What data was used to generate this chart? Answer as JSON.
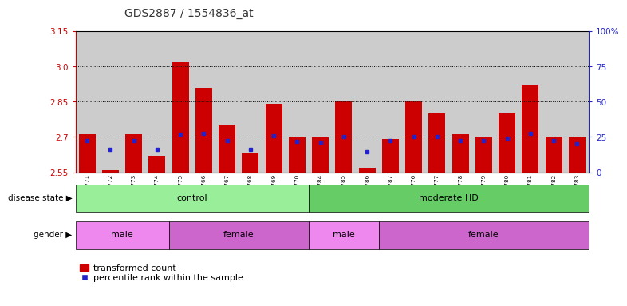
{
  "title": "GDS2887 / 1554836_at",
  "samples": [
    "GSM217771",
    "GSM217772",
    "GSM217773",
    "GSM217774",
    "GSM217775",
    "GSM217766",
    "GSM217767",
    "GSM217768",
    "GSM217769",
    "GSM217770",
    "GSM217784",
    "GSM217785",
    "GSM217786",
    "GSM217787",
    "GSM217776",
    "GSM217777",
    "GSM217778",
    "GSM217779",
    "GSM217780",
    "GSM217781",
    "GSM217782",
    "GSM217783"
  ],
  "red_values": [
    2.71,
    2.56,
    2.71,
    2.62,
    3.02,
    2.91,
    2.75,
    2.63,
    2.84,
    2.7,
    2.7,
    2.85,
    2.57,
    2.69,
    2.85,
    2.8,
    2.71,
    2.7,
    2.8,
    2.92,
    2.7,
    2.7
  ],
  "blue_values": [
    2.685,
    2.648,
    2.686,
    2.648,
    2.712,
    2.715,
    2.686,
    2.648,
    2.706,
    2.682,
    2.677,
    2.7,
    2.637,
    2.686,
    2.7,
    2.7,
    2.686,
    2.686,
    2.696,
    2.715,
    2.686,
    2.672
  ],
  "ymin": 2.55,
  "ymax": 3.15,
  "yticks_left": [
    2.55,
    2.7,
    2.85,
    3.0,
    3.15
  ],
  "yticks_right": [
    0,
    25,
    50,
    75,
    100
  ],
  "grid_vals": [
    2.7,
    2.85,
    3.0
  ],
  "disease_state_labels": [
    "control",
    "moderate HD"
  ],
  "disease_state_ranges": [
    [
      0,
      10
    ],
    [
      10,
      22
    ]
  ],
  "gender_labels": [
    "male",
    "female",
    "male",
    "female"
  ],
  "gender_ranges": [
    [
      0,
      4
    ],
    [
      4,
      10
    ],
    [
      10,
      13
    ],
    [
      13,
      22
    ]
  ],
  "bar_color": "#cc0000",
  "blue_color": "#2222cc",
  "control_color": "#99ee99",
  "moderate_color": "#66cc66",
  "male_color": "#ee88ee",
  "female_color": "#cc66cc",
  "col_bg_color": "#cccccc",
  "plot_bg_color": "#ffffff",
  "title_color": "#333333",
  "left_axis_color": "#cc0000",
  "right_axis_color": "#2222cc"
}
